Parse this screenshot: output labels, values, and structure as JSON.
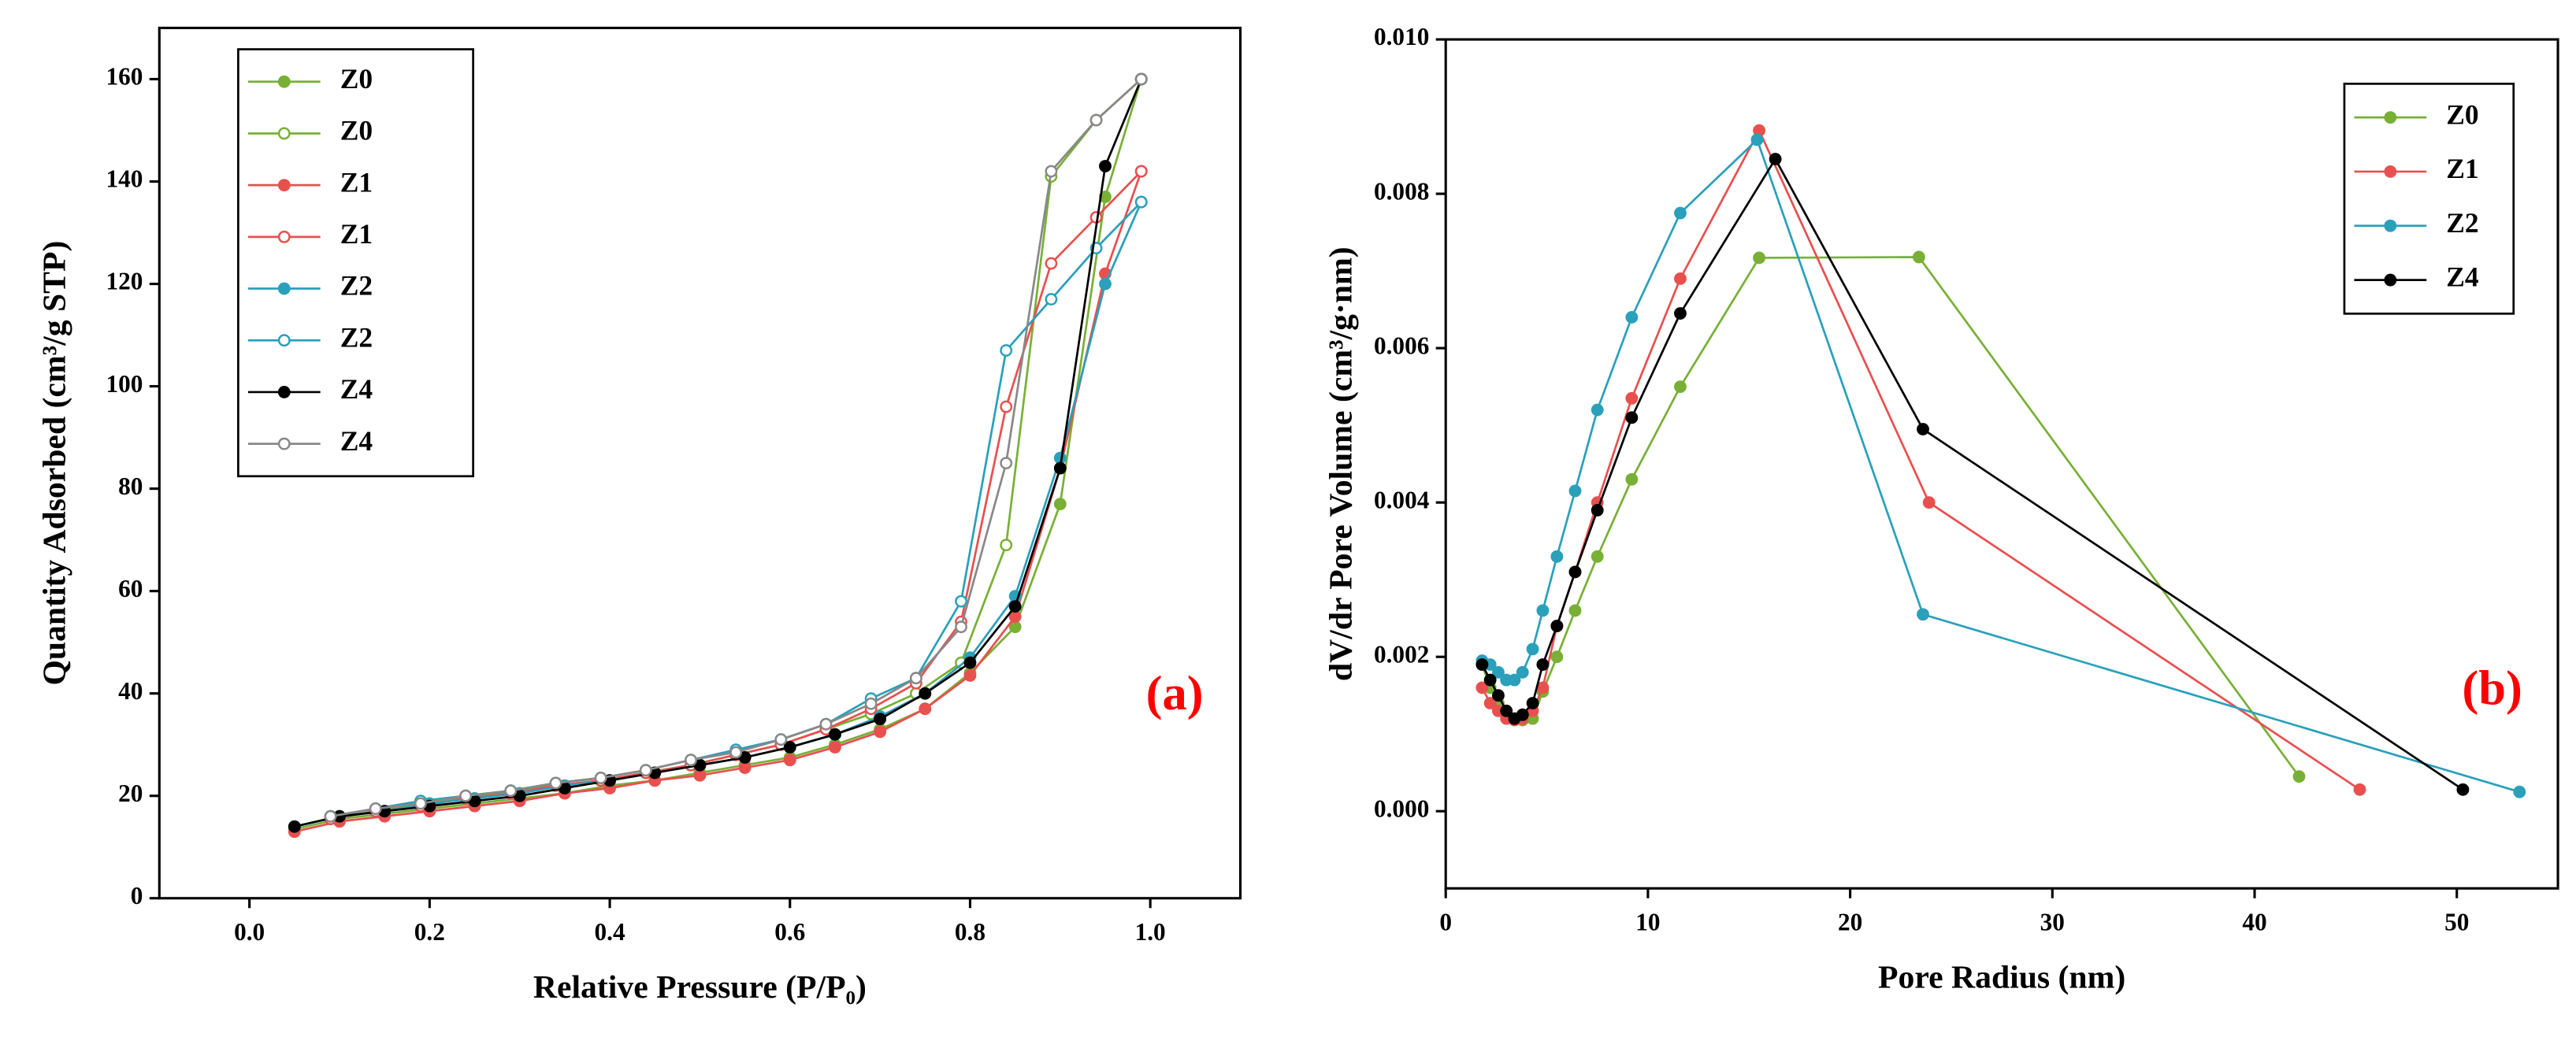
{
  "chart_data": [
    {
      "type": "line",
      "xlabel": "Relative Pressure (P/P₀)",
      "ylabel": "Quantity Adsorbed (cm³/g STP)",
      "annotation": {
        "text": "(a)",
        "color": "#ff0000"
      },
      "xlim": [
        -0.1,
        1.1
      ],
      "ylim": [
        0,
        170
      ],
      "xticks": [
        {
          "value": 0,
          "label": "0.0"
        },
        0.2,
        0.4,
        0.6,
        0.8,
        {
          "value": 1,
          "label": "1.0"
        }
      ],
      "yticks": [
        0,
        20,
        40,
        60,
        80,
        100,
        120,
        140,
        160
      ],
      "legend": "upper left",
      "series": [
        {
          "name": "Z0",
          "color": "#78b035",
          "filled": true,
          "x": [
            0.05,
            0.1,
            0.15,
            0.2,
            0.25,
            0.3,
            0.35,
            0.4,
            0.45,
            0.5,
            0.55,
            0.6,
            0.65,
            0.7,
            0.75,
            0.8,
            0.85,
            0.9,
            0.95,
            0.99
          ],
          "values": [
            13.5,
            15.5,
            16.5,
            17.5,
            18.5,
            19.5,
            20.5,
            22,
            23,
            24.5,
            26,
            27.5,
            30,
            33,
            37,
            44,
            53,
            77,
            137,
            160
          ]
        },
        {
          "name": "Z0",
          "color": "#78b035",
          "filled": false,
          "x": [
            0.99,
            0.94,
            0.89,
            0.84,
            0.79,
            0.74,
            0.69,
            0.64,
            0.59,
            0.54,
            0.49,
            0.44,
            0.39,
            0.34,
            0.29,
            0.24,
            0.19,
            0.14,
            0.09
          ],
          "values": [
            160,
            152,
            141,
            69,
            46,
            40,
            36,
            33,
            30,
            28,
            26,
            24.5,
            23,
            22,
            21,
            19.5,
            18.5,
            17,
            15.5
          ]
        },
        {
          "name": "Z1",
          "color": "#e8504f",
          "filled": true,
          "x": [
            0.05,
            0.1,
            0.15,
            0.2,
            0.25,
            0.3,
            0.35,
            0.4,
            0.45,
            0.5,
            0.55,
            0.6,
            0.65,
            0.7,
            0.75,
            0.8,
            0.85,
            0.9,
            0.95,
            0.99
          ],
          "values": [
            13,
            15,
            16,
            17,
            18,
            19,
            20.5,
            21.5,
            23,
            24,
            25.5,
            27,
            29.5,
            32.5,
            37,
            43.5,
            55,
            84,
            122,
            142
          ]
        },
        {
          "name": "Z1",
          "color": "#e8504f",
          "filled": false,
          "x": [
            0.99,
            0.94,
            0.89,
            0.84,
            0.79,
            0.74,
            0.69,
            0.64,
            0.59,
            0.54,
            0.49,
            0.44,
            0.39,
            0.34,
            0.29,
            0.24,
            0.19,
            0.14,
            0.09
          ],
          "values": [
            142,
            133,
            124,
            96,
            54,
            42,
            37,
            33,
            30,
            28,
            26,
            24.5,
            23,
            22,
            20.5,
            19.5,
            18,
            17,
            15.5
          ]
        },
        {
          "name": "Z2",
          "color": "#2aa0bb",
          "filled": true,
          "x": [
            0.05,
            0.1,
            0.15,
            0.2,
            0.25,
            0.3,
            0.35,
            0.4,
            0.45,
            0.5,
            0.55,
            0.6,
            0.65,
            0.7,
            0.75,
            0.8,
            0.85,
            0.9,
            0.95,
            0.99
          ],
          "values": [
            14,
            16,
            17,
            18.5,
            19.5,
            20.5,
            22,
            23,
            24.5,
            26,
            27.5,
            29.5,
            32,
            35.5,
            40,
            47,
            59,
            86,
            120,
            136
          ]
        },
        {
          "name": "Z2",
          "color": "#2aa0bb",
          "filled": false,
          "x": [
            0.99,
            0.94,
            0.89,
            0.84,
            0.79,
            0.74,
            0.69,
            0.64,
            0.59,
            0.54,
            0.49,
            0.44,
            0.39,
            0.34,
            0.29,
            0.24,
            0.19,
            0.14,
            0.09
          ],
          "values": [
            136,
            127,
            117,
            107,
            58,
            43,
            39,
            34,
            31,
            29,
            27,
            25,
            23.5,
            22.5,
            21,
            20,
            19,
            17.5,
            16
          ]
        },
        {
          "name": "Z4",
          "color": "#000000",
          "filled": true,
          "x": [
            0.05,
            0.1,
            0.15,
            0.2,
            0.25,
            0.3,
            0.35,
            0.4,
            0.45,
            0.5,
            0.55,
            0.6,
            0.65,
            0.7,
            0.75,
            0.8,
            0.85,
            0.9,
            0.95,
            0.99
          ],
          "values": [
            14,
            16,
            17,
            18,
            19,
            20,
            21.5,
            23,
            24.5,
            26,
            27.5,
            29.5,
            32,
            35,
            40,
            46,
            57,
            84,
            143,
            160
          ]
        },
        {
          "name": "Z4",
          "color": "#888888",
          "filled": false,
          "x": [
            0.99,
            0.94,
            0.89,
            0.84,
            0.79,
            0.74,
            0.69,
            0.64,
            0.59,
            0.54,
            0.49,
            0.44,
            0.39,
            0.34,
            0.29,
            0.24,
            0.19,
            0.14,
            0.09
          ],
          "values": [
            160,
            152,
            142,
            85,
            53,
            43,
            38,
            34,
            31,
            28.5,
            27,
            25,
            23.5,
            22.5,
            21,
            20,
            18.5,
            17.5,
            16
          ]
        }
      ]
    },
    {
      "type": "line",
      "xlabel": "Pore Radius (nm)",
      "ylabel": "dV/dr Pore Volume (cm³/g·nm)",
      "annotation": {
        "text": "(b)",
        "color": "#ff0000"
      },
      "xlim": [
        0,
        55
      ],
      "ylim": [
        -0.001,
        0.01
      ],
      "xticks": [
        0,
        10,
        20,
        30,
        40,
        50
      ],
      "yticks": [
        {
          "value": 0,
          "label": "0.000"
        },
        {
          "value": 0.002,
          "label": "0.002"
        },
        {
          "value": 0.004,
          "label": "0.004"
        },
        {
          "value": 0.006,
          "label": "0.006"
        },
        {
          "value": 0.008,
          "label": "0.008"
        },
        {
          "value": 0.01,
          "label": "0.010"
        }
      ],
      "legend": "upper right",
      "series": [
        {
          "name": "Z0",
          "color": "#78b035",
          "filled": true,
          "x": [
            1.8,
            2.2,
            2.6,
            3.0,
            3.4,
            3.8,
            4.3,
            4.8,
            5.5,
            6.4,
            7.5,
            9.2,
            11.6,
            15.5,
            23.4,
            42.2
          ],
          "values": [
            0.0019,
            0.0016,
            0.0014,
            0.0013,
            0.0012,
            0.00118,
            0.0012,
            0.00155,
            0.002,
            0.0026,
            0.0033,
            0.0043,
            0.0055,
            0.00717,
            0.00718,
            0.00045
          ]
        },
        {
          "name": "Z1",
          "color": "#e8504f",
          "filled": true,
          "x": [
            1.8,
            2.2,
            2.6,
            3.0,
            3.4,
            3.8,
            4.3,
            4.8,
            5.5,
            6.4,
            7.5,
            9.2,
            11.6,
            15.5,
            23.9,
            45.2
          ],
          "values": [
            0.0016,
            0.0014,
            0.0013,
            0.0012,
            0.00118,
            0.0012,
            0.0013,
            0.0016,
            0.0024,
            0.0031,
            0.004,
            0.00535,
            0.0069,
            0.00882,
            0.004,
            0.00028
          ]
        },
        {
          "name": "Z2",
          "color": "#2aa0bb",
          "filled": true,
          "x": [
            1.8,
            2.2,
            2.6,
            3.0,
            3.4,
            3.8,
            4.3,
            4.8,
            5.5,
            6.4,
            7.5,
            9.2,
            11.6,
            15.4,
            23.6,
            53.1
          ],
          "values": [
            0.00195,
            0.0019,
            0.0018,
            0.0017,
            0.0017,
            0.0018,
            0.0021,
            0.0026,
            0.0033,
            0.00415,
            0.0052,
            0.0064,
            0.00775,
            0.0087,
            0.00255,
            0.00025
          ]
        },
        {
          "name": "Z4",
          "color": "#000000",
          "filled": true,
          "x": [
            1.8,
            2.2,
            2.6,
            3.0,
            3.4,
            3.8,
            4.3,
            4.8,
            5.5,
            6.4,
            7.5,
            9.2,
            11.6,
            16.3,
            23.6,
            50.3
          ],
          "values": [
            0.0019,
            0.0017,
            0.0015,
            0.0013,
            0.0012,
            0.00125,
            0.0014,
            0.0019,
            0.0024,
            0.0031,
            0.0039,
            0.0051,
            0.00645,
            0.00845,
            0.00495,
            0.00028
          ]
        }
      ]
    }
  ]
}
